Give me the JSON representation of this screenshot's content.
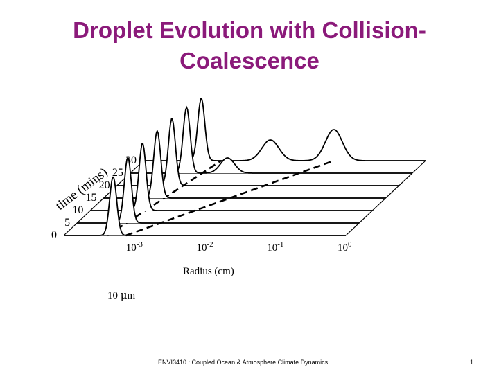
{
  "slide": {
    "title_line1": "Droplet Evolution with Collision-",
    "title_line2": "Coalescence",
    "footer": "ENVI3410 : Coupled Ocean & Atmosphere Climate Dynamics",
    "page_number": "1"
  },
  "chart_data": {
    "type": "waterfall-line",
    "title": "Droplet Evolution with Collision-Coalescence",
    "xlabel": "Radius (cm)",
    "ylabel": "time (mins)",
    "x_scale": "log",
    "xlim": [
      0.0001,
      1
    ],
    "x_ticks": [
      {
        "base": "10",
        "exp": "-3",
        "value": 0.001
      },
      {
        "base": "10",
        "exp": "-2",
        "value": 0.01
      },
      {
        "base": "10",
        "exp": "-1",
        "value": 0.1
      },
      {
        "base": "10",
        "exp": "0",
        "value": 1
      }
    ],
    "y_ticks": [
      "0",
      "5",
      "10",
      "15",
      "20",
      "25",
      "30"
    ],
    "annotation": "10 μm",
    "annotation_text": "10 ",
    "annotation_mu": "μ",
    "annotation_unit": "m",
    "dashed_line_a": [
      [
        -3.38,
        0
      ],
      [
        -2.9,
        30
      ]
    ],
    "dashed_line_b": [
      [
        -3.12,
        0
      ],
      [
        -1.3,
        30
      ]
    ],
    "series": [
      {
        "time": 0,
        "peaks": [
          {
            "x": -3.3,
            "h": 0.85,
            "w": 0.05
          }
        ]
      },
      {
        "time": 5,
        "peaks": [
          {
            "x": -3.28,
            "h": 0.95,
            "w": 0.05
          }
        ]
      },
      {
        "time": 10,
        "peaks": [
          {
            "x": -3.26,
            "h": 0.97,
            "w": 0.05
          }
        ]
      },
      {
        "time": 15,
        "peaks": [
          {
            "x": -3.24,
            "h": 0.97,
            "w": 0.05
          }
        ]
      },
      {
        "time": 20,
        "peaks": [
          {
            "x": -3.22,
            "h": 0.97,
            "w": 0.05
          }
        ]
      },
      {
        "time": 25,
        "peaks": [
          {
            "x": -3.2,
            "h": 0.95,
            "w": 0.05
          },
          {
            "x": -2.62,
            "h": 0.22,
            "w": 0.1
          }
        ]
      },
      {
        "time": 30,
        "peaks": [
          {
            "x": -3.18,
            "h": 0.9,
            "w": 0.05
          },
          {
            "x": -2.2,
            "h": 0.3,
            "w": 0.12
          },
          {
            "x": -1.3,
            "h": 0.45,
            "w": 0.12
          }
        ]
      }
    ]
  }
}
